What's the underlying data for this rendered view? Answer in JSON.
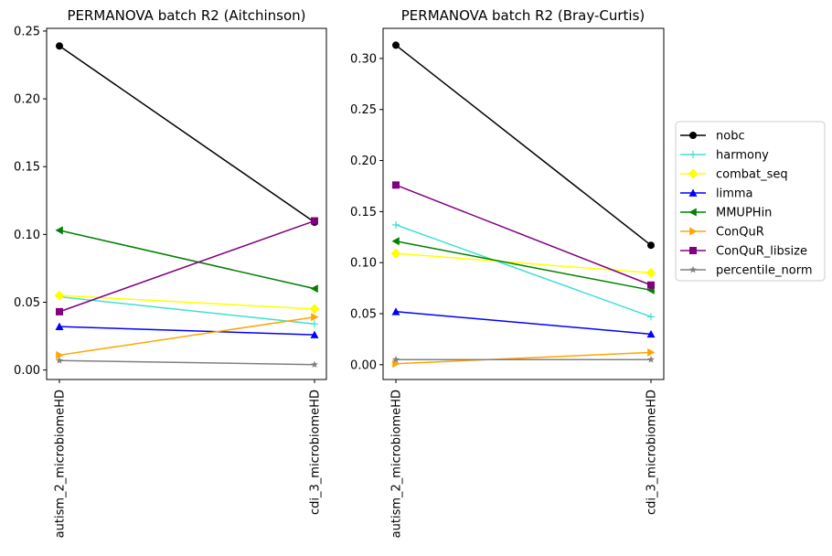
{
  "chart_data": [
    {
      "type": "line",
      "title": "PERMANOVA batch R2 (Aitchinson)",
      "categories": [
        "autism_2_microbiomeHD",
        "cdi_3_microbiomeHD"
      ],
      "ylim": [
        -0.007,
        0.252
      ],
      "yticks": [
        "0.00",
        "0.05",
        "0.10",
        "0.15",
        "0.20",
        "0.25"
      ],
      "series": [
        {
          "name": "nobc",
          "values": [
            0.239,
            0.109
          ]
        },
        {
          "name": "harmony",
          "values": [
            0.054,
            0.034
          ]
        },
        {
          "name": "combat_seq",
          "values": [
            0.055,
            0.045
          ]
        },
        {
          "name": "limma",
          "values": [
            0.032,
            0.026
          ]
        },
        {
          "name": "MMUPHin",
          "values": [
            0.103,
            0.06
          ]
        },
        {
          "name": "ConQuR",
          "values": [
            0.011,
            0.039
          ]
        },
        {
          "name": "ConQuR_libsize",
          "values": [
            0.043,
            0.11
          ]
        },
        {
          "name": "percentile_norm",
          "values": [
            0.007,
            0.004
          ]
        }
      ]
    },
    {
      "type": "line",
      "title": "PERMANOVA batch R2 (Bray-Curtis)",
      "categories": [
        "autism_2_microbiomeHD",
        "cdi_3_microbiomeHD"
      ],
      "ylim": [
        -0.0145,
        0.3295
      ],
      "yticks": [
        "0.00",
        "0.05",
        "0.10",
        "0.15",
        "0.20",
        "0.25",
        "0.30"
      ],
      "series": [
        {
          "name": "nobc",
          "values": [
            0.313,
            0.117
          ]
        },
        {
          "name": "harmony",
          "values": [
            0.137,
            0.047
          ]
        },
        {
          "name": "combat_seq",
          "values": [
            0.109,
            0.09
          ]
        },
        {
          "name": "limma",
          "values": [
            0.052,
            0.03
          ]
        },
        {
          "name": "MMUPHin",
          "values": [
            0.121,
            0.073
          ]
        },
        {
          "name": "ConQuR",
          "values": [
            0.001,
            0.012
          ]
        },
        {
          "name": "ConQuR_libsize",
          "values": [
            0.176,
            0.078
          ]
        },
        {
          "name": "percentile_norm",
          "values": [
            0.005,
            0.005
          ]
        }
      ]
    }
  ],
  "legend": {
    "placement": "right",
    "items": [
      {
        "label": "nobc",
        "color": "#000000",
        "marker": "circle"
      },
      {
        "label": "harmony",
        "color": "#40e0d0",
        "marker": "plus"
      },
      {
        "label": "combat_seq",
        "color": "#ffff00",
        "marker": "diamond"
      },
      {
        "label": "limma",
        "color": "#0000ff",
        "marker": "triangle-up"
      },
      {
        "label": "MMUPHin",
        "color": "#008000",
        "marker": "triangle-left"
      },
      {
        "label": "ConQuR",
        "color": "#ffa500",
        "marker": "triangle-right"
      },
      {
        "label": "ConQuR_libsize",
        "color": "#800080",
        "marker": "square"
      },
      {
        "label": "percentile_norm",
        "color": "#808080",
        "marker": "star"
      }
    ]
  }
}
